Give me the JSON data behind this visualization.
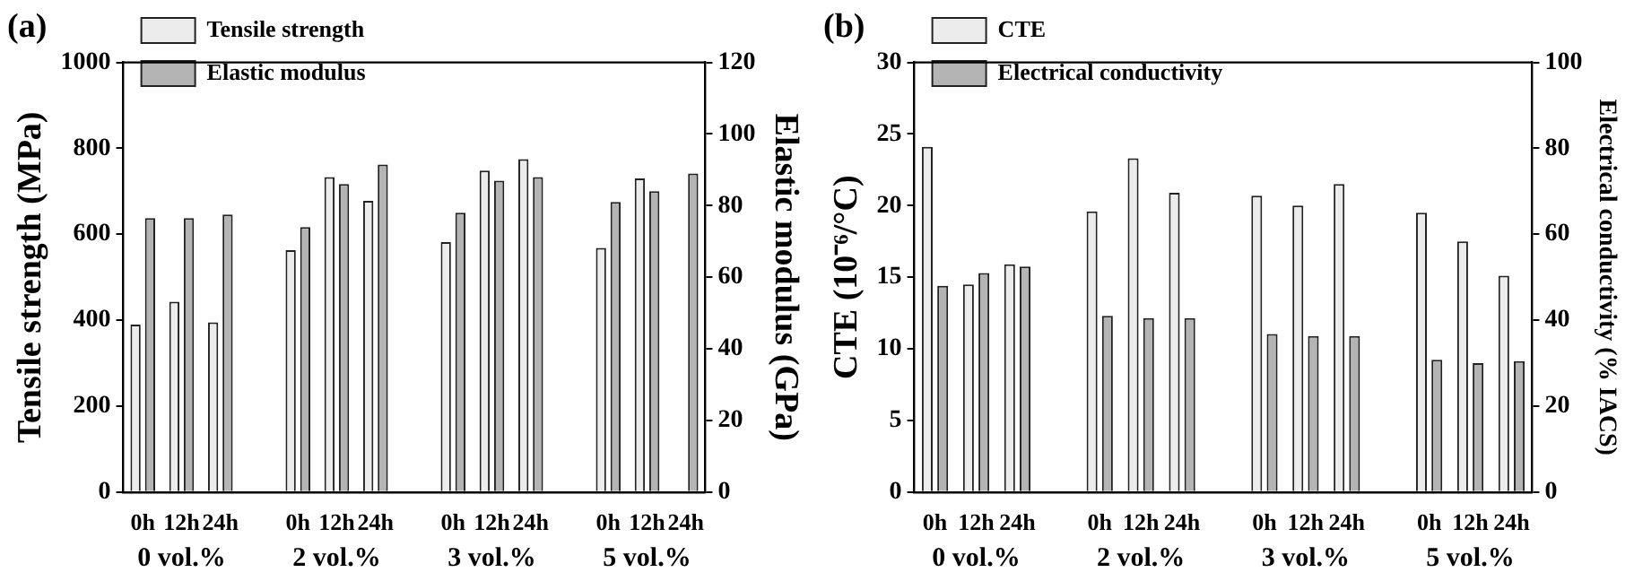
{
  "chart_data": [
    {
      "type": "bar",
      "title": "(a)",
      "ylabel": "Tensile strength (MPa)",
      "y2label": "Elastic modulus (GPa)",
      "categories": [
        "0h",
        "12h",
        "24h",
        null,
        "0h",
        "12h",
        "24h",
        null,
        "0h",
        "12h",
        "24h",
        null,
        "0h",
        "12h",
        "24h"
      ],
      "series": [
        {
          "name": "Tensile strength",
          "color": "#ececec",
          "values": [
            390,
            443,
            395,
            null,
            563,
            733,
            678,
            null,
            582,
            748,
            775,
            null,
            568,
            730,
            null
          ]
        },
        {
          "name": "Elastic modulus",
          "color": "#b4b4b4",
          "axis": "y2",
          "values": [
            76.5,
            76.5,
            77.5,
            null,
            74,
            86,
            91.5,
            null,
            78,
            87,
            88,
            null,
            81,
            84,
            89
          ]
        }
      ],
      "ylim": [
        0,
        1000
      ],
      "yticks": [
        0,
        200,
        400,
        600,
        800,
        1000
      ],
      "y2lim": [
        0,
        120
      ],
      "y2ticks": [
        0,
        20,
        40,
        60,
        80,
        100,
        120
      ],
      "legend": "top left",
      "grid": false,
      "annotations": [
        "0 vol.%",
        "2 vol.%",
        "3 vol.%",
        "5 vol.%"
      ]
    },
    {
      "type": "bar",
      "title": "(b)",
      "ylabel": "CTE (10⁻⁶/°C)",
      "y2label": "Electrical conductivity (% IACS)",
      "categories": [
        "0h",
        "12h",
        "24h",
        null,
        "0h",
        "12h",
        "24h",
        null,
        "0h",
        "12h",
        "24h",
        null,
        "0h",
        "12h",
        "24h"
      ],
      "series": [
        {
          "name": "CTE",
          "color": "#ececec",
          "values": [
            24.1,
            14.5,
            15.9,
            null,
            19.6,
            23.3,
            20.9,
            null,
            20.7,
            20.0,
            21.5,
            null,
            19.5,
            17.5,
            15.1
          ]
        },
        {
          "name": "Electrical conductivity",
          "color": "#b4b4b4",
          "axis": "y2",
          "values": [
            48,
            51,
            52.5,
            null,
            41,
            40.5,
            40.5,
            null,
            36.8,
            36.3,
            36.3,
            null,
            30.8,
            30,
            30.5
          ]
        }
      ],
      "ylim": [
        0,
        30
      ],
      "yticks": [
        0,
        5,
        10,
        15,
        20,
        25,
        30
      ],
      "y2lim": [
        0,
        100
      ],
      "y2ticks": [
        0,
        20,
        40,
        60,
        80,
        100
      ],
      "legend": "top left",
      "grid": false,
      "annotations": [
        "0 vol.%",
        "2 vol.%",
        "3 vol.%",
        "5 vol.%"
      ]
    }
  ]
}
